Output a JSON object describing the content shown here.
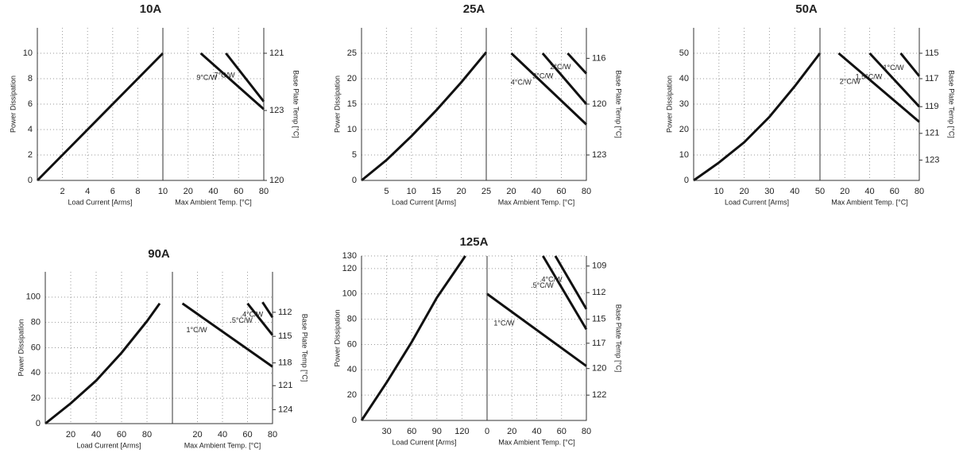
{
  "chart_data": [
    {
      "type": "line",
      "title": "10A",
      "ylabel": "Power Dissipation",
      "y2label": "Base Plate Temp [°C]",
      "ylim": [
        0,
        12
      ],
      "yticks": [
        0,
        2,
        4,
        6,
        8,
        10
      ],
      "y2ticks": [
        {
          "value": 121,
          "y": 10
        },
        {
          "value": 123,
          "y": 5.5
        },
        {
          "value": 120,
          "y": 0
        }
      ],
      "left": {
        "xlabel": "Load Current [Arms]",
        "xlim": [
          0,
          10
        ],
        "xticks": [
          2,
          4,
          6,
          8,
          10
        ],
        "series": [
          {
            "x": [
              0,
              10
            ],
            "values": [
              0,
              10
            ]
          }
        ]
      },
      "right": {
        "xlabel": "Max Ambient Temp. [°C]",
        "xlim": [
          0,
          80
        ],
        "xticks": [
          20,
          40,
          60,
          80
        ],
        "series": [
          {
            "name": "9°C/W",
            "x": [
              30,
              80
            ],
            "values": [
              10,
              5.6
            ]
          },
          {
            "name": "7°C/W",
            "x": [
              50,
              80
            ],
            "values": [
              10,
              6.2
            ]
          }
        ]
      }
    },
    {
      "type": "line",
      "title": "25A",
      "ylabel": "Power Dissipation",
      "y2label": "Base Plate Temp [°C]",
      "ylim": [
        0,
        30
      ],
      "yticks": [
        0,
        5,
        10,
        15,
        20,
        25
      ],
      "y2ticks": [
        {
          "value": 116,
          "y": 24
        },
        {
          "value": 120,
          "y": 15
        },
        {
          "value": 123,
          "y": 5
        }
      ],
      "left": {
        "xlabel": "Load Current [Arms]",
        "xlim": [
          0,
          25
        ],
        "xticks": [
          5,
          10,
          15,
          20,
          25
        ],
        "series": [
          {
            "x": [
              0,
              5,
              10,
              15,
              20,
              25
            ],
            "values": [
              0,
              4,
              8.7,
              13.8,
              19.3,
              25.2
            ]
          }
        ]
      },
      "right": {
        "xlabel": "Max Ambient Temp. [°C]",
        "xlim": [
          0,
          80
        ],
        "xticks": [
          20,
          40,
          60,
          80
        ],
        "series": [
          {
            "name": "4°C/W",
            "x": [
              20,
              80
            ],
            "values": [
              25,
              11
            ]
          },
          {
            "name": "3°C/W",
            "x": [
              45,
              80
            ],
            "values": [
              25,
              15
            ]
          },
          {
            "name": "2°C/W",
            "x": [
              65,
              80
            ],
            "values": [
              25,
              21
            ]
          }
        ]
      }
    },
    {
      "type": "line",
      "title": "50A",
      "ylabel": "Power Dissipation",
      "y2label": "Base Plate Temp [°C]",
      "ylim": [
        0,
        60
      ],
      "yticks": [
        0,
        10,
        20,
        30,
        40,
        50
      ],
      "y2ticks": [
        {
          "value": 115,
          "y": 50
        },
        {
          "value": 117,
          "y": 40
        },
        {
          "value": 119,
          "y": 29
        },
        {
          "value": 121,
          "y": 18.5
        },
        {
          "value": 123,
          "y": 8
        }
      ],
      "left": {
        "xlabel": "Load Current [Arms]",
        "xlim": [
          0,
          50
        ],
        "xticks": [
          10,
          20,
          30,
          40,
          50
        ],
        "series": [
          {
            "x": [
              0,
              10,
              20,
              30,
              40,
              50
            ],
            "values": [
              0,
              7,
              15,
              25,
              37,
              50
            ]
          }
        ]
      },
      "right": {
        "xlabel": "Max Ambient Temp. [°C]",
        "xlim": [
          0,
          80
        ],
        "xticks": [
          20,
          40,
          60,
          80
        ],
        "series": [
          {
            "name": "2°C/W",
            "x": [
              15,
              80
            ],
            "values": [
              50,
              23
            ]
          },
          {
            "name": "1.5°C/W",
            "x": [
              40,
              80
            ],
            "values": [
              50,
              29
            ]
          },
          {
            "name": "1°C/W",
            "x": [
              65,
              80
            ],
            "values": [
              50,
              41
            ]
          }
        ]
      }
    },
    {
      "type": "line",
      "title": "90A",
      "ylabel": "Power Dissipation",
      "y2label": "Base Plate Temp [°C]",
      "ylim": [
        0,
        120
      ],
      "yticks": [
        0,
        20,
        40,
        60,
        80,
        100
      ],
      "y2ticks": [
        {
          "value": 112,
          "y": 88
        },
        {
          "value": 115,
          "y": 69
        },
        {
          "value": 118,
          "y": 48
        },
        {
          "value": 121,
          "y": 30
        },
        {
          "value": 124,
          "y": 11
        }
      ],
      "left": {
        "xlabel": "Load Current [Arms]",
        "xlim": [
          0,
          100
        ],
        "xticks": [
          20,
          40,
          60,
          80
        ],
        "series": [
          {
            "x": [
              0,
              20,
              40,
              60,
              80,
              90
            ],
            "values": [
              0,
              16,
              34,
              56,
              81,
              95
            ]
          }
        ]
      },
      "right": {
        "xlabel": "Max Ambient Temp. [°C]",
        "xlim": [
          0,
          80
        ],
        "xticks": [
          20,
          40,
          60,
          80
        ],
        "series": [
          {
            "name": "1°C/W",
            "x": [
              8,
              80
            ],
            "values": [
              95,
              45
            ]
          },
          {
            "name": ".5°C/W",
            "x": [
              60,
              80
            ],
            "values": [
              95,
              70
            ]
          },
          {
            "name": ".4°C/W",
            "x": [
              72,
              80
            ],
            "values": [
              96,
              84
            ]
          }
        ]
      }
    },
    {
      "type": "line",
      "title": "125A",
      "ylabel": "Power Dissipation",
      "y2label": "Base Plate Temp [°C]",
      "ylim": [
        0,
        130
      ],
      "yticks": [
        0,
        20,
        40,
        60,
        80,
        100,
        120,
        130
      ],
      "y2ticks": [
        {
          "value": 109,
          "y": 122
        },
        {
          "value": 112,
          "y": 101
        },
        {
          "value": 115,
          "y": 80
        },
        {
          "value": 117,
          "y": 61
        },
        {
          "value": 120,
          "y": 41
        },
        {
          "value": 122,
          "y": 20
        }
      ],
      "left": {
        "xlabel": "Load Current [Arms]",
        "xlim": [
          0,
          150
        ],
        "xticks": [
          30,
          60,
          90,
          120
        ],
        "series": [
          {
            "x": [
              0,
              30,
              60,
              90,
              120,
              124
            ],
            "values": [
              0,
              30,
              62,
              97,
              126,
              130
            ]
          }
        ]
      },
      "right": {
        "xlabel": "Max Ambient Temp. [°C]",
        "xlim": [
          0,
          80
        ],
        "xticks": [
          0,
          20,
          40,
          60,
          80
        ],
        "series": [
          {
            "name": "1°C/W",
            "x": [
              0,
              80
            ],
            "values": [
              100,
              43
            ]
          },
          {
            "name": ".5°C/W",
            "x": [
              45,
              80
            ],
            "values": [
              130,
              72
            ]
          },
          {
            "name": ".4°C/W",
            "x": [
              55,
              80
            ],
            "values": [
              130,
              88
            ]
          }
        ]
      }
    }
  ]
}
